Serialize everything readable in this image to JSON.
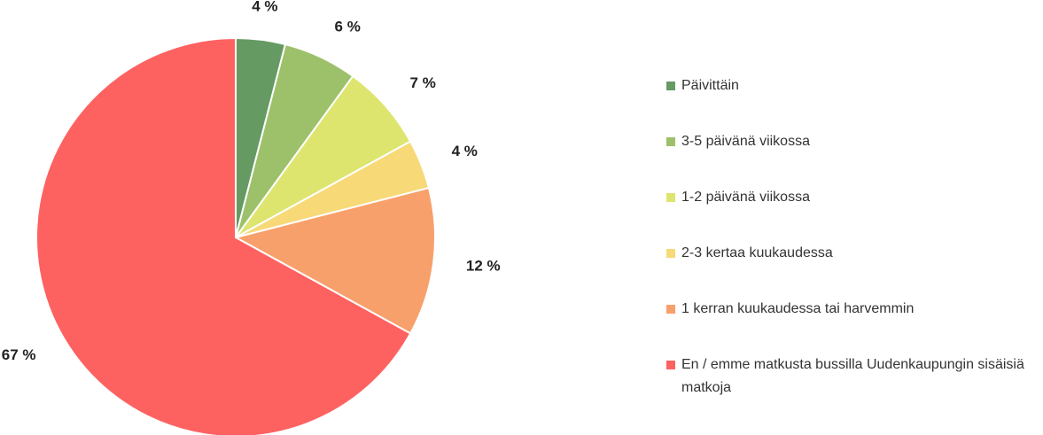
{
  "chart_data": {
    "type": "pie",
    "categories": [
      "Päivittäin",
      "3-5 päivänä viikossa",
      "1-2 päivänä viikossa",
      "2-3 kertaa kuukaudessa",
      "1 kerran kuukaudessa tai harvemmin",
      "En / emme matkusta bussilla Uudenkaupungin sisäisiä matkoja"
    ],
    "values": [
      4,
      6,
      7,
      4,
      12,
      67
    ],
    "value_labels": [
      "4 %",
      "6 %",
      "7 %",
      "4 %",
      "12 %",
      "67 %"
    ],
    "colors": [
      "#659a63",
      "#9dc06a",
      "#dde56f",
      "#f8d977",
      "#f8a06b",
      "#fd6261"
    ],
    "legend": "right"
  }
}
